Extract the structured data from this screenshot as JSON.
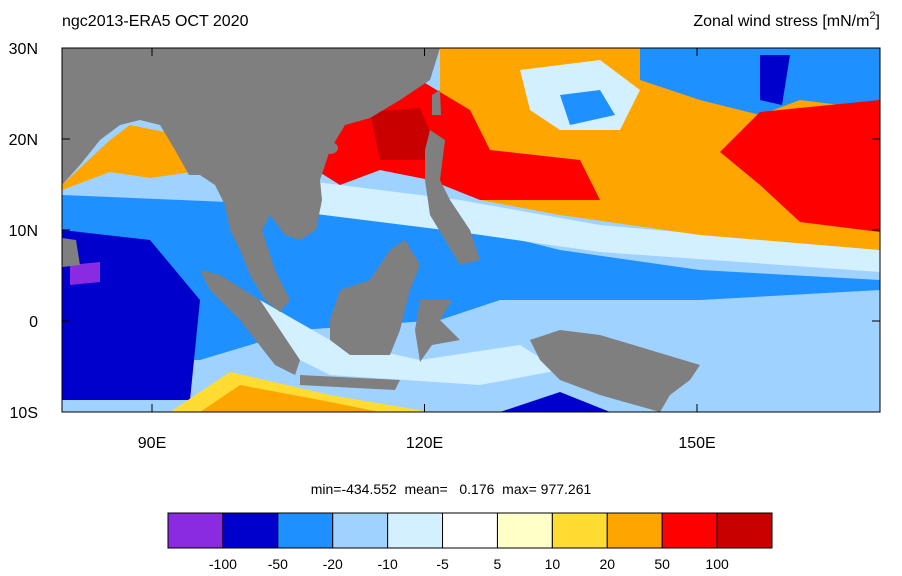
{
  "map": {
    "title_left": "ngc2013-ERA5  OCT 2020",
    "title_right": {
      "text": "Zonal wind stress [mN/m",
      "sup": "2",
      "end": "]"
    },
    "lat_labels": [
      "30N",
      "20N",
      "10N",
      "0",
      "10S"
    ],
    "lon_labels": [
      "90E",
      "120E",
      "150E"
    ],
    "stats": "min=-434.552  mean=   0.176  max= 977.261",
    "colorbar": {
      "colors": [
        "#8a2be2",
        "#0000cd",
        "#1e90ff",
        "#a0d2ff",
        "#d2f0ff",
        "#ffffff",
        "#ffffc8",
        "#ffdc32",
        "#ffa500",
        "#ff0000",
        "#c80000"
      ],
      "labels": [
        "-100",
        "-50",
        "-20",
        "-10",
        "-5",
        "5",
        "10",
        "20",
        "50",
        "100"
      ]
    }
  }
}
